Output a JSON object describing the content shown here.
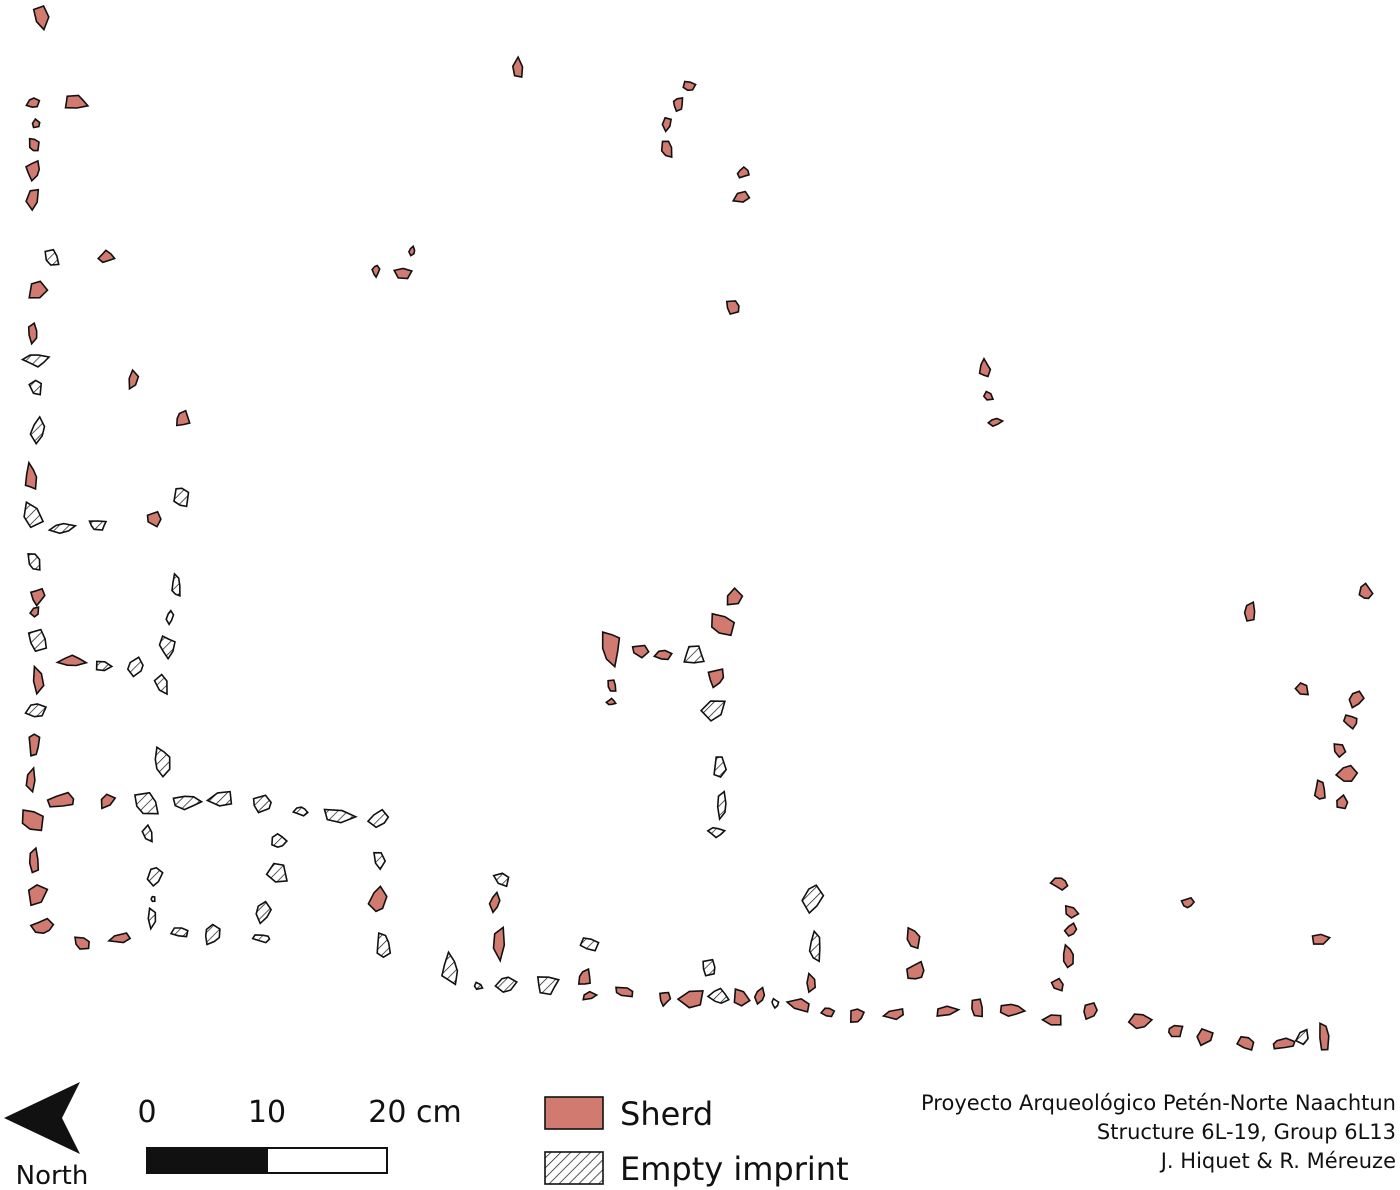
{
  "north": "North",
  "scale": {
    "labels": [
      "0",
      "10",
      "20 cm"
    ]
  },
  "legend": {
    "items": [
      "Sherd",
      "Empty imprint"
    ]
  },
  "credits": [
    "Proyecto Arqueológico Petén-Norte Naachtun",
    "Structure 6L-19, Group 6L13",
    "J. Hiquet & R. Méreuze"
  ]
}
